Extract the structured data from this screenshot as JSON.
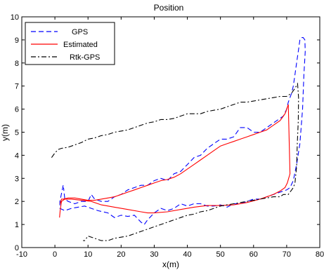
{
  "chart_data": {
    "type": "line",
    "title": "Position",
    "xlabel": "x(m)",
    "ylabel": "y(m)",
    "xlim": [
      -10,
      80
    ],
    "ylim": [
      0,
      10
    ],
    "xticks": [
      -10,
      0,
      10,
      20,
      30,
      40,
      50,
      60,
      70,
      80
    ],
    "yticks": [
      0,
      1,
      2,
      3,
      4,
      5,
      6,
      7,
      8,
      9,
      10
    ],
    "xtick_labels": [
      "-10",
      "0",
      "10",
      "20",
      "30",
      "40",
      "50",
      "60",
      "70",
      "80"
    ],
    "ytick_labels": [
      "0",
      "1",
      "2",
      "3",
      "4",
      "5",
      "6",
      "7",
      "8",
      "9",
      "10"
    ],
    "grid": false,
    "legend_position": "top-left",
    "series": [
      {
        "name": "GPS",
        "color": "#0000ff",
        "style": "dashed",
        "x": [
          2.5,
          1.5,
          1.5,
          3,
          5,
          7,
          9,
          11,
          13,
          16,
          18,
          20,
          22,
          24,
          26,
          27,
          28,
          30,
          32,
          34,
          36,
          38,
          40,
          42,
          44,
          46,
          48,
          50,
          52,
          54,
          56,
          58,
          60,
          62,
          64,
          66,
          68,
          70,
          71,
          72,
          73,
          74,
          74.8,
          75.2,
          75.6,
          75.5,
          75,
          74.5,
          74,
          73.5,
          73,
          72.5,
          72,
          71.5,
          71,
          70.5,
          70,
          69,
          68,
          66,
          64,
          62,
          60,
          58,
          56,
          54,
          52,
          50,
          48,
          46,
          44,
          42,
          40,
          38,
          36,
          34,
          32,
          30,
          28,
          26,
          24,
          22,
          20,
          18,
          16,
          14,
          12,
          11,
          10,
          8,
          6,
          4,
          3,
          2.6
        ],
        "y": [
          2.7,
          2.0,
          1.7,
          1.6,
          1.7,
          1.75,
          1.8,
          1.7,
          1.6,
          1.5,
          1.3,
          1.4,
          1.35,
          1.4,
          1.1,
          1.0,
          1.2,
          1.5,
          1.7,
          1.6,
          1.7,
          1.9,
          1.8,
          1.9,
          1.9,
          1.8,
          1.8,
          1.85,
          1.75,
          1.9,
          1.9,
          2.0,
          2.1,
          2.1,
          2.2,
          2.3,
          2.4,
          2.5,
          2.6,
          2.9,
          3.6,
          4.5,
          6.0,
          7.5,
          8.5,
          9.0,
          9.1,
          9.1,
          9.0,
          8.5,
          8.0,
          7.5,
          7.0,
          6.7,
          6.5,
          6.3,
          6.0,
          5.7,
          5.6,
          5.4,
          5.2,
          5.0,
          5.0,
          5.2,
          5.2,
          4.8,
          4.7,
          4.7,
          4.5,
          4.3,
          4.0,
          3.9,
          3.6,
          3.3,
          3.2,
          2.9,
          3.0,
          2.9,
          2.7,
          2.7,
          2.6,
          2.5,
          2.3,
          2.2,
          2.0,
          2.0,
          2.1,
          2.3,
          2.0,
          2.0,
          1.9,
          2.0,
          2.1,
          2.6
        ]
      },
      {
        "name": "Estimated",
        "color": "#ff0000",
        "style": "solid",
        "x": [
          1.4,
          1.6,
          2.0,
          3,
          5,
          8,
          11,
          14,
          18,
          22,
          26,
          28,
          30,
          34,
          38,
          42,
          46,
          50,
          54,
          58,
          62,
          66,
          68,
          69.5,
          70.2,
          70.6,
          70.8,
          71,
          70.5,
          70,
          69.8,
          69.5,
          69,
          68,
          66,
          64,
          62,
          60,
          58,
          56,
          54,
          52,
          50,
          48,
          46,
          44,
          42,
          40,
          38,
          36,
          34,
          32,
          30,
          28,
          26,
          24,
          22,
          20,
          18,
          16,
          14,
          12,
          10,
          8,
          6,
          4,
          2.5,
          2.0,
          1.8,
          1.6
        ],
        "y": [
          1.3,
          1.6,
          2.0,
          2.1,
          2.1,
          2.05,
          2.0,
          1.85,
          1.75,
          1.65,
          1.55,
          1.5,
          1.5,
          1.55,
          1.65,
          1.75,
          1.82,
          1.82,
          1.85,
          1.95,
          2.1,
          2.3,
          2.45,
          2.6,
          2.8,
          3.0,
          3.1,
          3.2,
          6.2,
          6.0,
          5.9,
          5.8,
          5.7,
          5.5,
          5.3,
          5.1,
          5.0,
          4.9,
          4.8,
          4.7,
          4.6,
          4.5,
          4.4,
          4.2,
          4.0,
          3.8,
          3.6,
          3.4,
          3.2,
          3.05,
          2.95,
          2.9,
          2.8,
          2.7,
          2.6,
          2.5,
          2.4,
          2.3,
          2.2,
          2.15,
          2.1,
          2.05,
          2.05,
          2.1,
          2.15,
          2.15,
          2.1,
          2.1,
          2.0,
          1.9
        ]
      },
      {
        "name": "Rtk-GPS",
        "color": "#000000",
        "style": "dashdot",
        "x": [
          -1,
          0,
          1,
          2,
          4,
          6,
          8,
          10,
          12,
          14,
          16,
          18,
          20,
          22,
          24,
          26,
          28,
          30,
          32,
          34,
          36,
          38,
          40,
          42,
          44,
          46,
          48,
          50,
          52,
          54,
          56,
          58,
          60,
          62,
          64,
          66,
          68,
          70,
          71.5,
          72.5,
          73.3,
          73.6,
          73.5,
          73.2,
          73,
          72.5,
          72,
          71.5,
          71,
          70.5,
          70,
          69,
          68,
          66,
          64,
          62,
          60,
          58,
          56,
          54,
          52,
          50,
          48,
          46,
          44,
          42,
          40,
          38,
          36,
          34,
          32,
          30,
          28,
          26,
          24,
          22,
          20,
          18,
          16,
          14,
          12,
          10,
          9,
          8.5
        ],
        "y": [
          3.9,
          4.1,
          4.25,
          4.3,
          4.35,
          4.45,
          4.55,
          4.7,
          4.75,
          4.85,
          4.9,
          5.0,
          5.05,
          5.1,
          5.2,
          5.3,
          5.4,
          5.45,
          5.55,
          5.55,
          5.6,
          5.7,
          5.8,
          5.8,
          5.8,
          5.9,
          5.95,
          6.0,
          6.1,
          6.2,
          6.3,
          6.3,
          6.35,
          6.4,
          6.45,
          6.5,
          6.55,
          6.55,
          6.7,
          6.9,
          7.1,
          6.5,
          5.5,
          4.5,
          3.5,
          2.8,
          2.6,
          2.5,
          2.4,
          2.3,
          2.3,
          2.3,
          2.2,
          2.2,
          2.15,
          2.1,
          2.05,
          2.0,
          1.95,
          1.9,
          1.85,
          1.8,
          1.7,
          1.6,
          1.55,
          1.45,
          1.4,
          1.3,
          1.2,
          1.1,
          1.0,
          0.9,
          0.8,
          0.7,
          0.6,
          0.5,
          0.45,
          0.4,
          0.3,
          0.3,
          0.4,
          0.5,
          0.3,
          0.3
        ]
      }
    ]
  }
}
